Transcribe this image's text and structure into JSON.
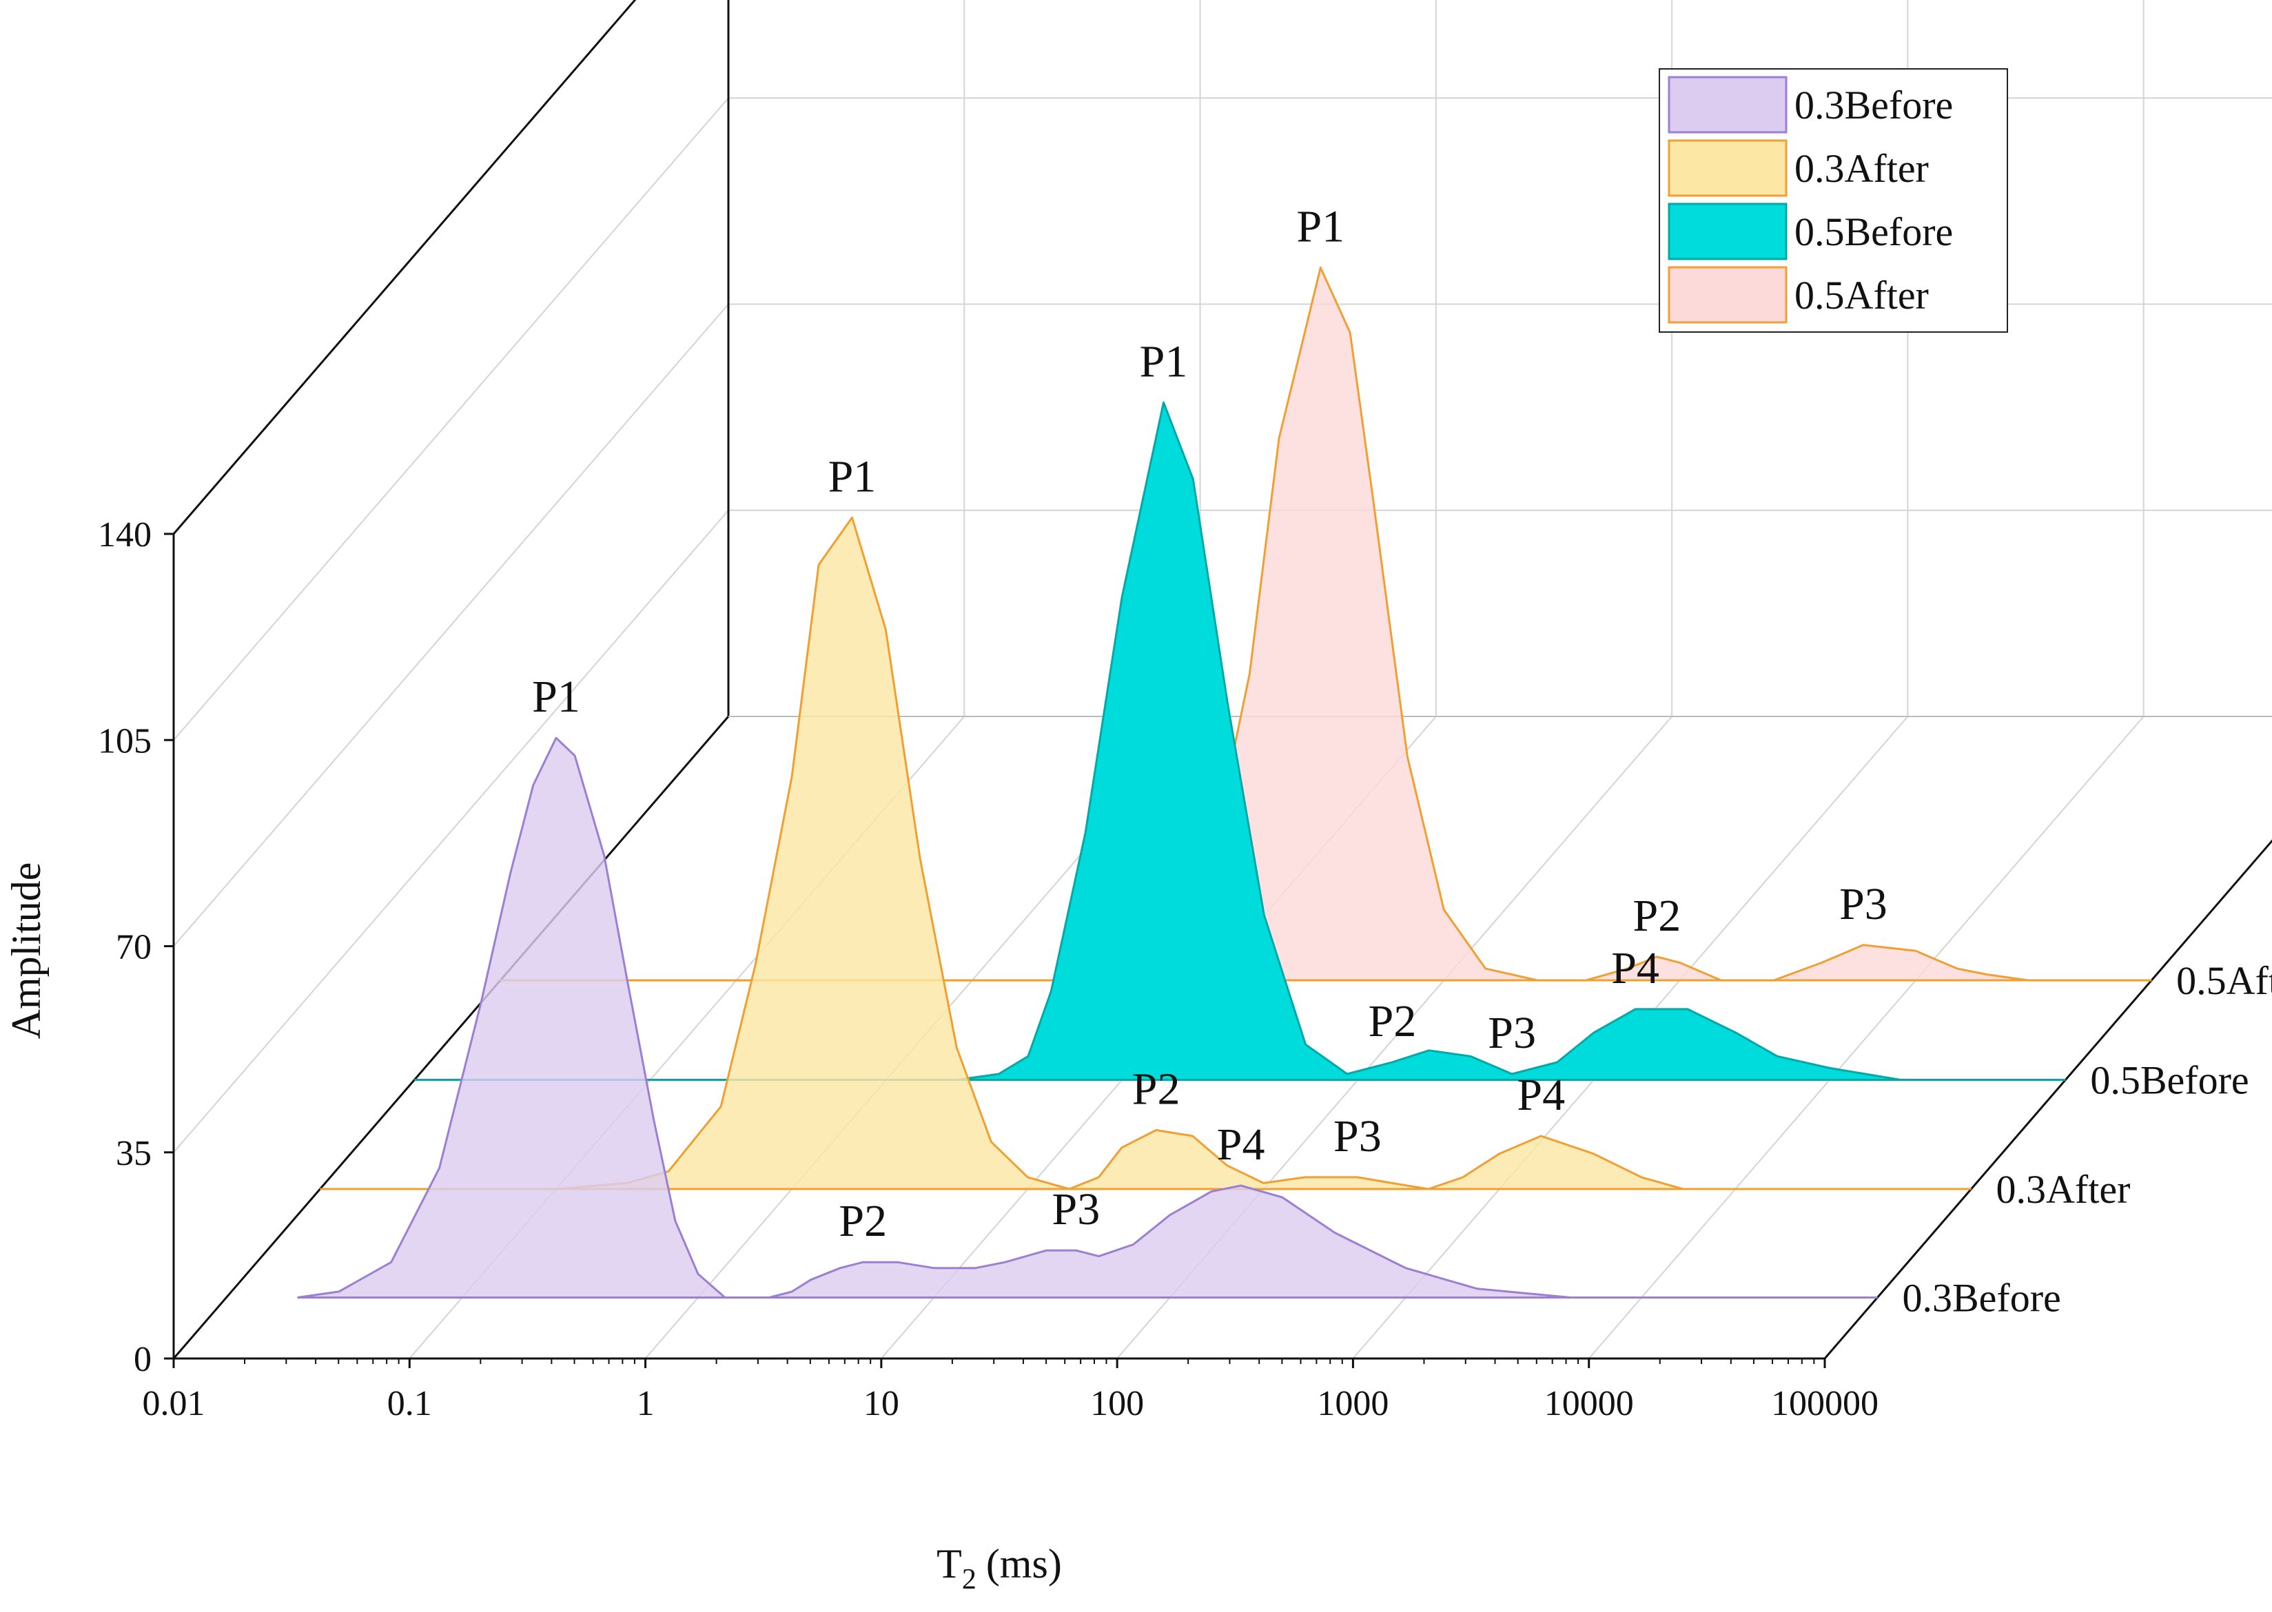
{
  "chart_data": {
    "type": "area",
    "subtype": "3d-waterfall",
    "xlabel": "T",
    "xlabel_subscript": "2",
    "xlabel_unit": "(ms)",
    "ylabel": "Amplitude",
    "xscale": "log",
    "xlim": [
      0.01,
      100000
    ],
    "ylim": [
      0,
      140
    ],
    "x_ticks": [
      "0.01",
      "0.1",
      "1",
      "10",
      "100",
      "1000",
      "10000",
      "100000"
    ],
    "y_ticks": [
      "0",
      "35",
      "70",
      "105",
      "140"
    ],
    "grid": true,
    "legend_position": "top-right",
    "series": [
      {
        "name": "0.3Before",
        "fill": "#dccdf0",
        "stroke": "#9b7fd2",
        "x": [
          0.02,
          0.03,
          0.05,
          0.08,
          0.12,
          0.16,
          0.2,
          0.25,
          0.3,
          0.4,
          0.5,
          0.65,
          0.8,
          1.0,
          1.3,
          1.6,
          2.0,
          2.5,
          3,
          4,
          5,
          7,
          10,
          15,
          20,
          30,
          40,
          50,
          70,
          100,
          150,
          200,
          300,
          500,
          1000,
          2000,
          5000,
          20000,
          100000
        ],
        "values": [
          0,
          1,
          6,
          22,
          50,
          72,
          87,
          95,
          92,
          75,
          54,
          30,
          13,
          4,
          0,
          0,
          0,
          1,
          3,
          5,
          6,
          6,
          5,
          5,
          6,
          8,
          8,
          7,
          9,
          14,
          18,
          19,
          17,
          11,
          5,
          1.5,
          0,
          0,
          0
        ],
        "peaks": [
          {
            "label": "P1",
            "x": 0.25,
            "y": 95
          },
          {
            "label": "P2",
            "x": 5,
            "y": 6
          },
          {
            "label": "P3",
            "x": 40,
            "y": 8
          },
          {
            "label": "P4",
            "x": 200,
            "y": 19
          }
        ]
      },
      {
        "name": "0.3After",
        "fill": "#fde7a5",
        "stroke": "#f0a033",
        "x": [
          0.01,
          0.05,
          0.1,
          0.2,
          0.3,
          0.5,
          0.7,
          1.0,
          1.3,
          1.8,
          2.5,
          3.5,
          5,
          7,
          10,
          15,
          20,
          25,
          35,
          50,
          70,
          100,
          150,
          250,
          350,
          500,
          700,
          1000,
          1500,
          2500,
          4000,
          6000,
          10000,
          100000
        ],
        "values": [
          0,
          0,
          0,
          1,
          3,
          14,
          38,
          70,
          106,
          114,
          95,
          56,
          24,
          8,
          2,
          0,
          2,
          7,
          10,
          9,
          4,
          1,
          2,
          2,
          1,
          0,
          2,
          6,
          9,
          6,
          2,
          0,
          0,
          0
        ],
        "peaks": [
          {
            "label": "P1",
            "x": 1.8,
            "y": 114
          },
          {
            "label": "P2",
            "x": 35,
            "y": 10
          },
          {
            "label": "P3",
            "x": 250,
            "y": 2
          },
          {
            "label": "P4",
            "x": 1500,
            "y": 9
          }
        ]
      },
      {
        "name": "0.5Before",
        "fill": "#00dcdc",
        "stroke": "#00a8a8",
        "x": [
          0.01,
          0.3,
          1.0,
          2.0,
          3.0,
          4.0,
          5.0,
          7.0,
          10,
          15,
          20,
          28,
          40,
          60,
          90,
          140,
          200,
          300,
          450,
          700,
          1000,
          1500,
          2500,
          4000,
          6000,
          10000,
          20000,
          50000,
          100000
        ],
        "values": [
          0,
          0,
          0,
          0,
          1,
          4,
          15,
          42,
          82,
          115,
          102,
          64,
          28,
          6,
          1,
          3,
          5,
          4,
          1,
          3,
          8,
          12,
          12,
          8,
          4,
          2,
          0,
          0,
          0
        ],
        "peaks": [
          {
            "label": "P1",
            "x": 15,
            "y": 115
          },
          {
            "label": "P2",
            "x": 140,
            "y": 3
          },
          {
            "label": "P3",
            "x": 450,
            "y": 1
          },
          {
            "label": "P4",
            "x": 1500,
            "y": 12
          }
        ]
      },
      {
        "name": "0.5After",
        "fill": "#fcdada",
        "stroke": "#f0a033",
        "x": [
          0.01,
          0.3,
          1.5,
          3,
          5,
          7,
          10,
          15,
          20,
          30,
          40,
          50,
          70,
          100,
          150,
          250,
          400,
          600,
          800,
          1000,
          1500,
          2500,
          4000,
          6000,
          10000,
          15000,
          20000,
          30000,
          50000,
          100000,
          200000
        ],
        "values": [
          0,
          0,
          0,
          0,
          1,
          5,
          18,
          52,
          92,
          121,
          110,
          82,
          38,
          12,
          2,
          0,
          0,
          2,
          4,
          3,
          0,
          0,
          3,
          6,
          5,
          2,
          1,
          0,
          0,
          0,
          0
        ],
        "peaks": [
          {
            "label": "P1",
            "x": 30,
            "y": 121
          },
          {
            "label": "P2",
            "x": 800,
            "y": 4
          },
          {
            "label": "P3",
            "x": 6000,
            "y": 6
          }
        ]
      }
    ]
  }
}
